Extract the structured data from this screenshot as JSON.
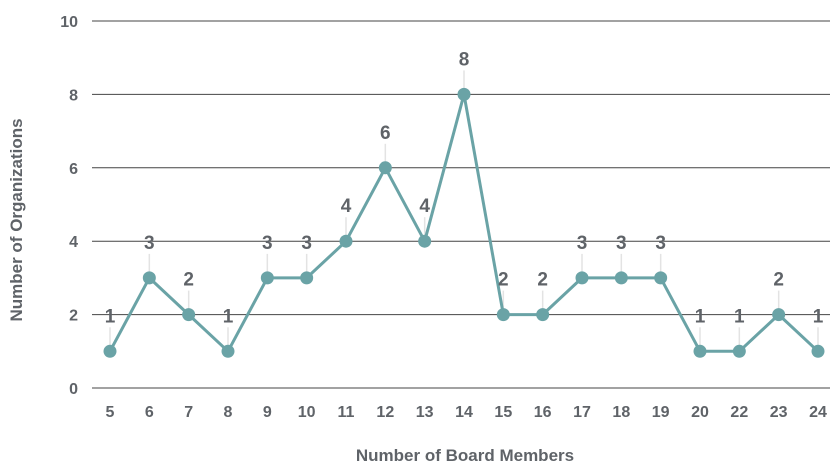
{
  "chart_data": {
    "type": "line",
    "title": "",
    "xlabel": "Number of Board Members",
    "ylabel": "Number of Organizations",
    "categories": [
      "5",
      "6",
      "7",
      "8",
      "9",
      "10",
      "11",
      "12",
      "13",
      "14",
      "15",
      "16",
      "17",
      "18",
      "19",
      "20",
      "22",
      "23",
      "24"
    ],
    "series": [
      {
        "values": [
          1,
          3,
          2,
          1,
          3,
          3,
          4,
          6,
          4,
          8,
          2,
          2,
          3,
          3,
          3,
          1,
          1,
          2,
          1
        ]
      }
    ],
    "y_ticks": [
      "0",
      "2",
      "4",
      "6",
      "8",
      "10"
    ],
    "ylim": [
      0,
      10
    ],
    "grid": true,
    "legend": "none",
    "colors": {
      "line": "#6aa3a6",
      "marker": "#6aa3a6",
      "text": "#5f6368",
      "grid": "#444444"
    }
  }
}
